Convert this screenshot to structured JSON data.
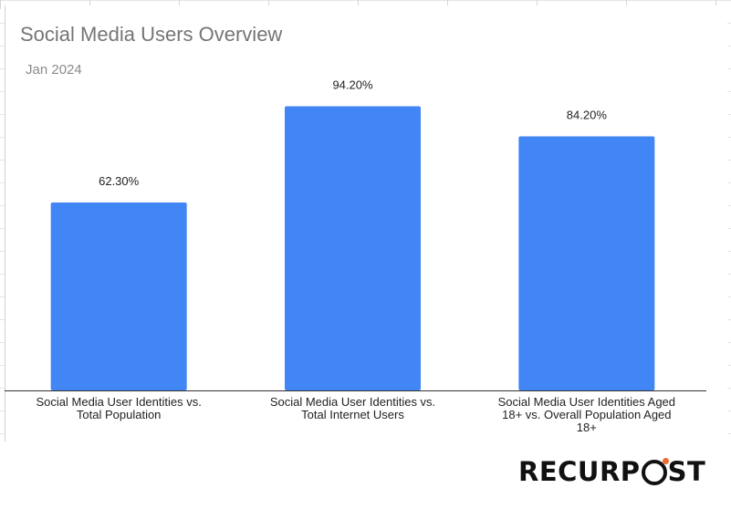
{
  "chart_data": {
    "type": "bar",
    "title": "Social Media Users Overview",
    "subtitle": "Jan 2024",
    "categories": [
      [
        "Social Media User Identities vs.",
        "Total Population"
      ],
      [
        "Social Media User Identities vs.",
        "Total Internet Users"
      ],
      [
        "Social Media User Identities Aged",
        "18+ vs. Overall Population Aged",
        "18+"
      ]
    ],
    "values": [
      62.3,
      94.2,
      84.2
    ],
    "value_labels": [
      "62.30%",
      "94.20%",
      "84.20%"
    ],
    "ylim": [
      0,
      100
    ],
    "grid": false,
    "bar_color": "#4285f4"
  },
  "brand": {
    "logo_text_a": "RECURP",
    "logo_text_b": "ST"
  }
}
